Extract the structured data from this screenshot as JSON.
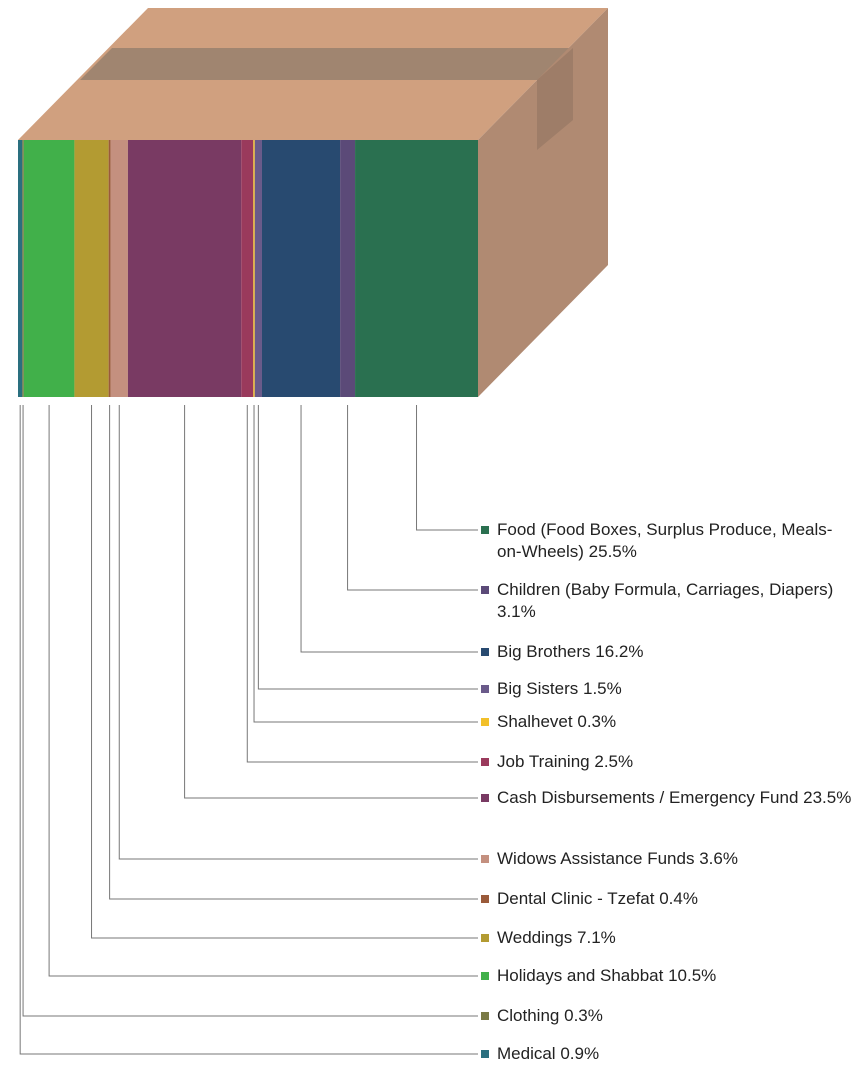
{
  "chart_data": {
    "type": "stacked-box",
    "categories": [
      "Medical",
      "Clothing",
      "Holidays and Shabbat",
      "Weddings",
      "Dental Clinic - Tzefat",
      "Widows Assistance Funds",
      "Cash Disbursements / Emergency Fund",
      "Job Training",
      "Shalhevet",
      "Big Sisters",
      "Big Brothers",
      "Children (Baby Formula, Carriages, Diapers)",
      "Food (Food Boxes, Surplus Produce, Meals-on-Wheels)"
    ],
    "values": [
      0.9,
      0.3,
      10.5,
      7.1,
      0.4,
      3.6,
      23.5,
      2.5,
      0.3,
      1.5,
      16.2,
      3.1,
      25.5
    ],
    "value_labels": [
      "0.9%",
      "0.3%",
      "10.5%",
      "7.1%",
      "0.4%",
      "3.6%",
      "23.5%",
      "2.5%",
      "0.3%",
      "1.5%",
      "16.2%",
      "3.1%",
      "25.5%"
    ],
    "colors": [
      "#2a6f7f",
      "#7a7a45",
      "#41b04a",
      "#b39b32",
      "#9a5a3a",
      "#c4907f",
      "#793a63",
      "#9a3a5c",
      "#f2c02a",
      "#6a5a8a",
      "#284a70",
      "#5b4a78",
      "#2a7050"
    ]
  }
}
